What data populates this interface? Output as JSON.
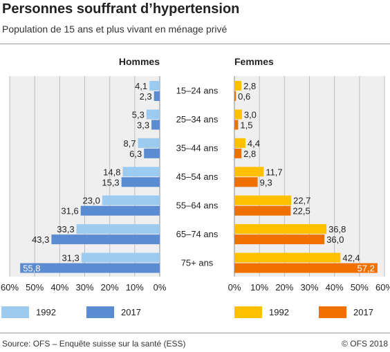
{
  "title": "Personnes souffrant d’hypertension",
  "subtitle": "Population de 15 ans et plus vivant en ménage privé",
  "source": "Source: OFS – Enquête suisse sur la santé (ESS)",
  "copyright": "© OFS 2018",
  "colors": {
    "hommes_1992": "#9dcbf0",
    "hommes_2017": "#5b8bd0",
    "femmes_1992": "#ffc000",
    "femmes_2017": "#f07000",
    "panel_bg": "#efefef",
    "grid": "#bdbdbd"
  },
  "chart_data": {
    "type": "bar",
    "orientation": "horizontal",
    "layout": "population-pyramid",
    "unit": "%",
    "categories": [
      "15–24 ans",
      "25–34 ans",
      "35–44 ans",
      "45–54 ans",
      "55–64 ans",
      "65–74 ans",
      "75+ ans"
    ],
    "xlim": [
      0,
      60
    ],
    "hommes_ticks": [
      "60%",
      "50%",
      "40%",
      "30%",
      "20%",
      "10%",
      "0%"
    ],
    "femmes_ticks": [
      "0%",
      "10%",
      "20%",
      "30%",
      "40%",
      "50%",
      "60%"
    ],
    "panels": [
      {
        "title": "Hommes",
        "series": [
          {
            "name": "1992",
            "values": [
              4.1,
              5.3,
              8.7,
              14.8,
              23.0,
              33.3,
              31.3
            ],
            "labels": [
              "4,1",
              "5,3",
              "8,7",
              "14,8",
              "23,0",
              "33,3",
              "31,3"
            ]
          },
          {
            "name": "2017",
            "values": [
              2.3,
              3.3,
              6.3,
              15.3,
              31.6,
              43.3,
              55.8
            ],
            "labels": [
              "2,3",
              "3,3",
              "6,3",
              "15,3",
              "31,6",
              "43,3",
              "55,8"
            ]
          }
        ]
      },
      {
        "title": "Femmes",
        "series": [
          {
            "name": "1992",
            "values": [
              2.8,
              3.0,
              4.4,
              11.7,
              22.7,
              36.8,
              42.4
            ],
            "labels": [
              "2,8",
              "3,0",
              "4,4",
              "11,7",
              "22,7",
              "36,8",
              "42,4"
            ]
          },
          {
            "name": "2017",
            "values": [
              0.6,
              1.5,
              2.8,
              9.3,
              22.5,
              36.0,
              57.2
            ],
            "labels": [
              "0,6",
              "1,5",
              "2,8",
              "9,3",
              "22,5",
              "36,0",
              "57,2"
            ]
          }
        ]
      }
    ],
    "grid": true,
    "legend_position": "bottom"
  }
}
